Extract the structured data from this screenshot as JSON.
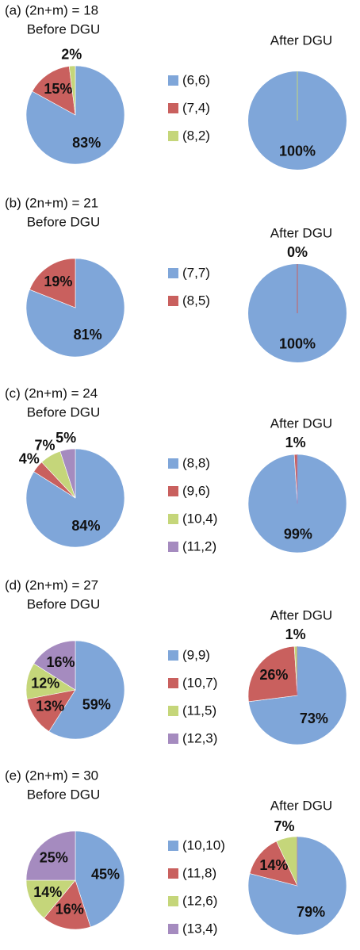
{
  "chart_data": [
    {
      "type": "pie",
      "title": "(a) (2n+m) = 18",
      "categories": [
        "(6,6)",
        "(7,4)",
        "(8,2)"
      ],
      "colors": [
        "#7fa6d9",
        "#c9605e",
        "#c5d67a"
      ],
      "series": [
        {
          "name": "Before DGU",
          "values": [
            83,
            15,
            2
          ],
          "value_labels": [
            "83%",
            "15%",
            "2%"
          ]
        },
        {
          "name": "After DGU",
          "values": [
            100,
            0,
            0
          ],
          "value_labels": [
            "100%",
            null,
            null
          ]
        }
      ]
    },
    {
      "type": "pie",
      "title": "(b) (2n+m) = 21",
      "categories": [
        "(7,7)",
        "(8,5)"
      ],
      "colors": [
        "#7fa6d9",
        "#c9605e"
      ],
      "series": [
        {
          "name": "Before DGU",
          "values": [
            81,
            19
          ],
          "value_labels": [
            "81%",
            "19%"
          ]
        },
        {
          "name": "After DGU",
          "values": [
            100,
            0
          ],
          "value_labels": [
            "100%",
            "0%"
          ]
        }
      ]
    },
    {
      "type": "pie",
      "title": "(c) (2n+m) = 24",
      "categories": [
        "(8,8)",
        "(9,6)",
        "(10,4)",
        "(11,2)"
      ],
      "colors": [
        "#7fa6d9",
        "#c9605e",
        "#c5d67a",
        "#a58bbf"
      ],
      "series": [
        {
          "name": "Before DGU",
          "values": [
            84,
            4,
            7,
            5
          ],
          "value_labels": [
            "84%",
            "4%",
            "7%",
            "5%"
          ]
        },
        {
          "name": "After DGU",
          "values": [
            99,
            1,
            0,
            0
          ],
          "value_labels": [
            "99%",
            "1%",
            null,
            null
          ]
        }
      ]
    },
    {
      "type": "pie",
      "title": "(d) (2n+m) = 27",
      "categories": [
        "(9,9)",
        "(10,7)",
        "(11,5)",
        "(12,3)"
      ],
      "colors": [
        "#7fa6d9",
        "#c9605e",
        "#c5d67a",
        "#a58bbf"
      ],
      "series": [
        {
          "name": "Before DGU",
          "values": [
            59,
            13,
            12,
            16
          ],
          "value_labels": [
            "59%",
            "13%",
            "12%",
            "16%"
          ]
        },
        {
          "name": "After DGU",
          "values": [
            73,
            26,
            1,
            0
          ],
          "value_labels": [
            "73%",
            "26%",
            "1%",
            null
          ]
        }
      ]
    },
    {
      "type": "pie",
      "title": "(e) (2n+m) = 30",
      "categories": [
        "(10,10)",
        "(11,8)",
        "(12,6)",
        "(13,4)"
      ],
      "colors": [
        "#7fa6d9",
        "#c9605e",
        "#c5d67a",
        "#a58bbf"
      ],
      "series": [
        {
          "name": "Before DGU",
          "values": [
            45,
            16,
            14,
            25
          ],
          "value_labels": [
            "45%",
            "16%",
            "14%",
            "25%"
          ]
        },
        {
          "name": "After DGU",
          "values": [
            79,
            14,
            7,
            0
          ],
          "value_labels": [
            "79%",
            "14%",
            "7%",
            null
          ]
        }
      ]
    }
  ]
}
